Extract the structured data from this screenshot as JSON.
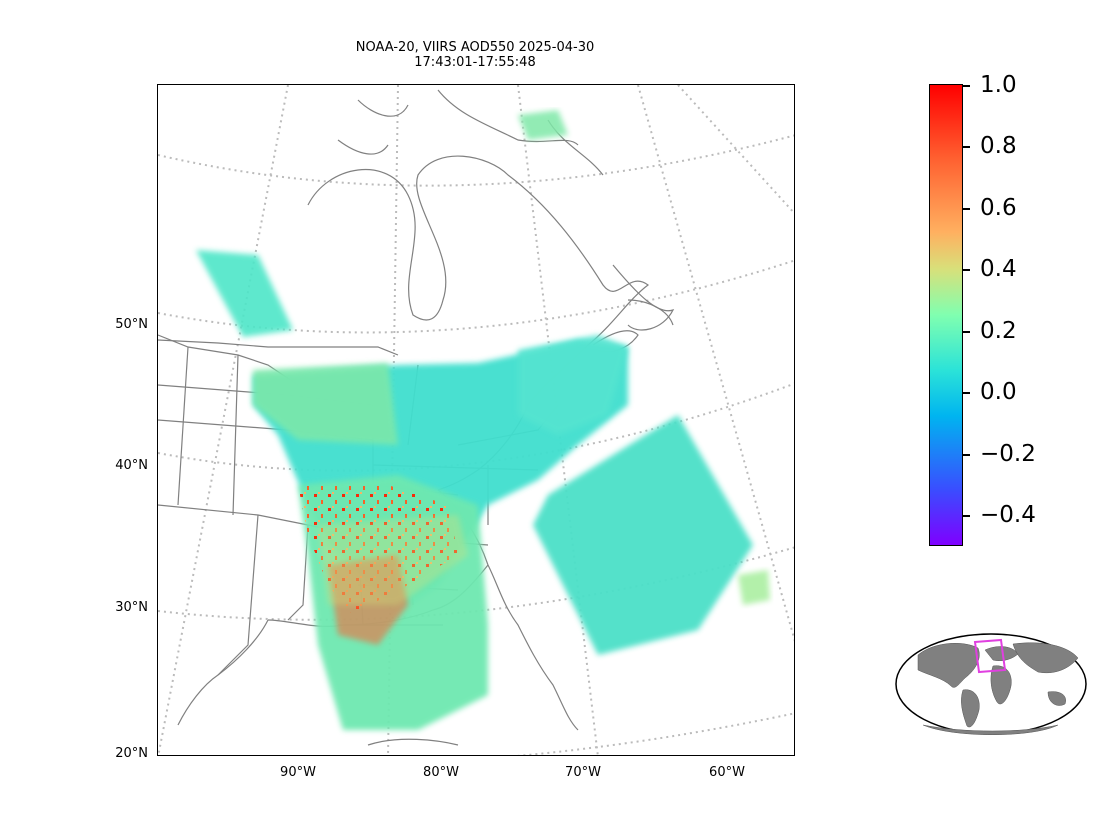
{
  "title": {
    "line1": "NOAA-20, VIIRS AOD550 2025-04-30",
    "line2": "17:43:01-17:55:48"
  },
  "map": {
    "projection": "lambert-conformal",
    "lat_labels": [
      "50°N",
      "40°N",
      "30°N",
      "20°N"
    ],
    "lon_labels": [
      "90°W",
      "80°W",
      "70°W",
      "60°W"
    ],
    "gridline_color": "#bbbbbb",
    "coastline_color": "#808080"
  },
  "colorbar": {
    "colormap": "rainbow",
    "range": [
      -0.5,
      1.0
    ],
    "ticks": [
      "1.0",
      "0.8",
      "0.6",
      "0.4",
      "0.2",
      "0.0",
      "−0.2",
      "−0.4"
    ],
    "colors": {
      "min": "#7f00ff",
      "low": "#00b4f0",
      "mid": "#80ffb0",
      "high": "#ffb060",
      "max": "#ff0000"
    }
  },
  "inset": {
    "land_color": "#808080",
    "highlight_color": "#e040e0"
  }
}
